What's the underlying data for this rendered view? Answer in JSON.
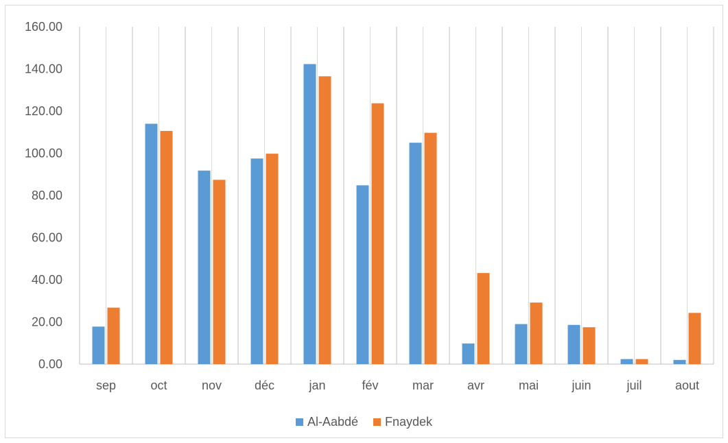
{
  "chart_data": {
    "type": "bar",
    "categories": [
      "sep",
      "oct",
      "nov",
      "déc",
      "jan",
      "fév",
      "mar",
      "avr",
      "mai",
      "juin",
      "juil",
      "aout"
    ],
    "series": [
      {
        "name": "Al-Aabdé",
        "color": "#5b9bd5",
        "values": [
          17.8,
          114.0,
          91.8,
          97.5,
          142.3,
          84.8,
          105.0,
          9.8,
          19.0,
          18.6,
          2.4,
          2.0
        ]
      },
      {
        "name": "Fnaydek",
        "color": "#ed7d31",
        "values": [
          26.8,
          110.6,
          87.4,
          99.8,
          136.5,
          123.7,
          109.7,
          43.2,
          29.2,
          17.5,
          2.4,
          24.3
        ]
      }
    ],
    "yticks": [
      "0.00",
      "20.00",
      "40.00",
      "60.00",
      "80.00",
      "100.00",
      "120.00",
      "140.00",
      "160.00"
    ],
    "ylim": [
      0,
      160
    ],
    "grid": "vertical",
    "legend_position": "bottom"
  }
}
